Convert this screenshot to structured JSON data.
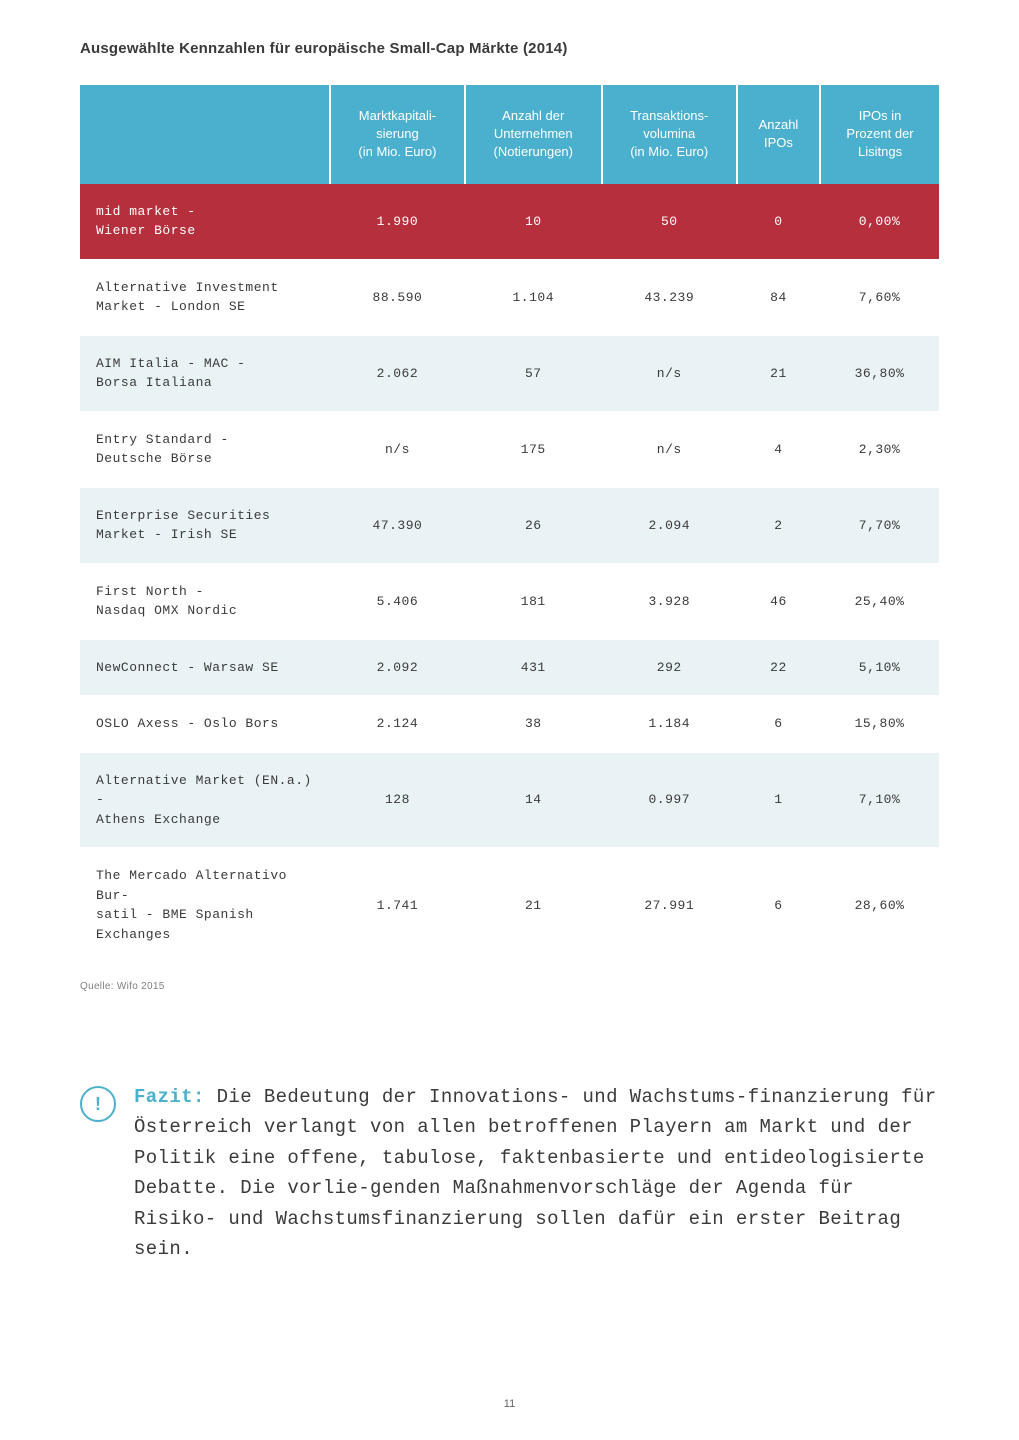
{
  "title": "Ausgewählte Kennzahlen für europäische Small-Cap Märkte (2014)",
  "table": {
    "columns": [
      "",
      "Marktkapitali-\nsierung\n(in Mio. Euro)",
      "Anzahl der\nUnternehmen\n(Notierungen)",
      "Transaktions-\nvolumina\n(in Mio. Euro)",
      "Anzahl\nIPOs",
      "IPOs in\nProzent der\nLisitngs"
    ],
    "rows": [
      {
        "cls": "hl",
        "cells": [
          "mid market -\nWiener Börse",
          "1.990",
          "10",
          "50",
          "0",
          "0,00%"
        ]
      },
      {
        "cls": "odd",
        "cells": [
          "Alternative Investment\nMarket - London SE",
          "88.590",
          "1.104",
          "43.239",
          "84",
          "7,60%"
        ]
      },
      {
        "cls": "even",
        "cells": [
          "AIM Italia - MAC -\nBorsa Italiana",
          "2.062",
          "57",
          "n/s",
          "21",
          "36,80%"
        ]
      },
      {
        "cls": "odd",
        "cells": [
          "Entry Standard -\nDeutsche Börse",
          "n/s",
          "175",
          "n/s",
          "4",
          "2,30%"
        ]
      },
      {
        "cls": "even",
        "cells": [
          "Enterprise Securities\nMarket - Irish SE",
          "47.390",
          "26",
          "2.094",
          "2",
          "7,70%"
        ]
      },
      {
        "cls": "odd",
        "cells": [
          "First North -\nNasdaq OMX Nordic",
          "5.406",
          "181",
          "3.928",
          "46",
          "25,40%"
        ]
      },
      {
        "cls": "even",
        "cells": [
          "NewConnect - Warsaw SE",
          "2.092",
          "431",
          "292",
          "22",
          "5,10%"
        ]
      },
      {
        "cls": "odd",
        "cells": [
          "OSLO Axess - Oslo Bors",
          "2.124",
          "38",
          "1.184",
          "6",
          "15,80%"
        ]
      },
      {
        "cls": "even",
        "cells": [
          "Alternative Market (EN.a.) -\nAthens Exchange",
          "128",
          "14",
          "0.997",
          "1",
          "7,10%"
        ]
      },
      {
        "cls": "odd",
        "cells": [
          "The Mercado Alternativo Bur-\nsatil - BME Spanish Exchanges",
          "1.741",
          "21",
          "27.991",
          "6",
          "28,60%"
        ]
      }
    ],
    "header_bg": "#4bb0cd",
    "highlight_bg": "#b52f3d",
    "row_even_bg": "#e9f3f6",
    "row_odd_bg": "#ffffff",
    "text_color": "#3a3a3a"
  },
  "source": "Quelle: Wifo 2015",
  "fazit": {
    "label": "Fazit:",
    "text": " Die Bedeutung der Innovations- und Wachstums-finanzierung für Österreich verlangt von allen betroffenen Playern am Markt und der Politik eine offene, tabulose, faktenbasierte und entideologisierte Debatte. Die vorlie-genden Maßnahmenvorschläge der Agenda für Risiko- und Wachstumsfinanzierung sollen dafür ein erster Beitrag sein.",
    "accent_color": "#4bb0cd",
    "icon_glyph": "!"
  },
  "page_number": "11"
}
